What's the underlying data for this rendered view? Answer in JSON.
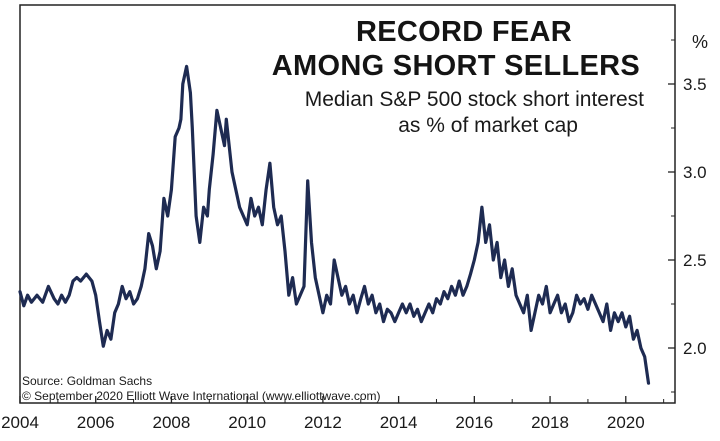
{
  "chart_data": {
    "type": "line",
    "title": "RECORD FEAR",
    "title_line2": "AMONG SHORT SELLERS",
    "subtitle": "Median S&P 500 stock short interest",
    "subtitle_line2": "as % of market cap",
    "unit_label": "%",
    "source": "Source: Goldman Sachs",
    "credit": "© September 2020 Elliott Wave International (www.elliottwave.com)",
    "xlim": [
      2004,
      2021.3
    ],
    "ylim": [
      1.75,
      3.75
    ],
    "x_ticks": [
      "2004",
      "2006",
      "2008",
      "2010",
      "2012",
      "2014",
      "2016",
      "2018",
      "2020"
    ],
    "y_ticks": [
      "2.0",
      "2.5",
      "3.0",
      "3.5"
    ],
    "y_tick_values": [
      2.0,
      2.5,
      3.0,
      3.5
    ],
    "grid": false,
    "line_color": "#1e2b52",
    "series": [
      {
        "x": [
          2004.0,
          2004.1,
          2004.2,
          2004.3,
          2004.45,
          2004.6,
          2004.75,
          2004.9,
          2005.0,
          2005.1,
          2005.2,
          2005.3,
          2005.4,
          2005.5,
          2005.6,
          2005.75,
          2005.9,
          2006.0,
          2006.1,
          2006.2,
          2006.3,
          2006.4,
          2006.5,
          2006.6,
          2006.7,
          2006.8,
          2006.9,
          2007.0,
          2007.1,
          2007.2,
          2007.3,
          2007.4,
          2007.5,
          2007.6,
          2007.7,
          2007.8,
          2007.9,
          2008.0,
          2008.1,
          2008.2,
          2008.25,
          2008.3,
          2008.4,
          2008.5,
          2008.55,
          2008.65,
          2008.75,
          2008.85,
          2008.95,
          2009.0,
          2009.1,
          2009.2,
          2009.3,
          2009.4,
          2009.45,
          2009.5,
          2009.6,
          2009.7,
          2009.8,
          2009.9,
          2010.0,
          2010.1,
          2010.2,
          2010.3,
          2010.4,
          2010.5,
          2010.6,
          2010.7,
          2010.8,
          2010.9,
          2011.0,
          2011.1,
          2011.2,
          2011.3,
          2011.4,
          2011.5,
          2011.6,
          2011.7,
          2011.8,
          2011.9,
          2012.0,
          2012.1,
          2012.2,
          2012.3,
          2012.4,
          2012.5,
          2012.6,
          2012.7,
          2012.8,
          2012.9,
          2013.0,
          2013.1,
          2013.2,
          2013.3,
          2013.4,
          2013.5,
          2013.6,
          2013.7,
          2013.8,
          2013.9,
          2014.0,
          2014.1,
          2014.2,
          2014.3,
          2014.4,
          2014.5,
          2014.6,
          2014.7,
          2014.8,
          2014.9,
          2015.0,
          2015.1,
          2015.2,
          2015.3,
          2015.4,
          2015.5,
          2015.6,
          2015.7,
          2015.8,
          2015.9,
          2016.0,
          2016.1,
          2016.2,
          2016.3,
          2016.4,
          2016.5,
          2016.6,
          2016.7,
          2016.8,
          2016.9,
          2017.0,
          2017.1,
          2017.2,
          2017.3,
          2017.4,
          2017.5,
          2017.6,
          2017.7,
          2017.8,
          2017.9,
          2018.0,
          2018.1,
          2018.2,
          2018.3,
          2018.4,
          2018.5,
          2018.6,
          2018.7,
          2018.8,
          2018.9,
          2019.0,
          2019.1,
          2019.2,
          2019.3,
          2019.4,
          2019.5,
          2019.6,
          2019.7,
          2019.8,
          2019.9,
          2020.0,
          2020.1,
          2020.2,
          2020.3,
          2020.4,
          2020.5,
          2020.6
        ],
        "y": [
          2.32,
          2.24,
          2.3,
          2.26,
          2.3,
          2.26,
          2.35,
          2.28,
          2.25,
          2.3,
          2.26,
          2.3,
          2.38,
          2.4,
          2.38,
          2.42,
          2.38,
          2.3,
          2.15,
          2.01,
          2.1,
          2.05,
          2.2,
          2.25,
          2.35,
          2.28,
          2.32,
          2.25,
          2.28,
          2.35,
          2.45,
          2.65,
          2.58,
          2.45,
          2.55,
          2.85,
          2.75,
          2.9,
          3.2,
          3.25,
          3.3,
          3.5,
          3.6,
          3.45,
          3.25,
          2.75,
          2.6,
          2.8,
          2.75,
          2.9,
          3.1,
          3.35,
          3.25,
          3.15,
          3.3,
          3.2,
          3.0,
          2.9,
          2.8,
          2.75,
          2.7,
          2.85,
          2.75,
          2.8,
          2.7,
          2.9,
          3.05,
          2.8,
          2.7,
          2.75,
          2.55,
          2.3,
          2.4,
          2.25,
          2.3,
          2.35,
          2.95,
          2.6,
          2.4,
          2.3,
          2.2,
          2.3,
          2.25,
          2.5,
          2.4,
          2.3,
          2.35,
          2.25,
          2.3,
          2.2,
          2.28,
          2.35,
          2.25,
          2.3,
          2.2,
          2.25,
          2.15,
          2.22,
          2.2,
          2.15,
          2.2,
          2.25,
          2.2,
          2.25,
          2.18,
          2.22,
          2.15,
          2.2,
          2.25,
          2.2,
          2.28,
          2.25,
          2.32,
          2.28,
          2.35,
          2.3,
          2.38,
          2.3,
          2.35,
          2.42,
          2.5,
          2.6,
          2.8,
          2.6,
          2.7,
          2.5,
          2.6,
          2.4,
          2.5,
          2.35,
          2.45,
          2.3,
          2.25,
          2.2,
          2.3,
          2.1,
          2.2,
          2.3,
          2.25,
          2.35,
          2.2,
          2.25,
          2.3,
          2.2,
          2.25,
          2.15,
          2.2,
          2.3,
          2.25,
          2.28,
          2.22,
          2.3,
          2.25,
          2.2,
          2.15,
          2.25,
          2.1,
          2.2,
          2.15,
          2.2,
          2.12,
          2.18,
          2.05,
          2.1,
          2.0,
          1.95,
          1.8
        ]
      }
    ]
  }
}
